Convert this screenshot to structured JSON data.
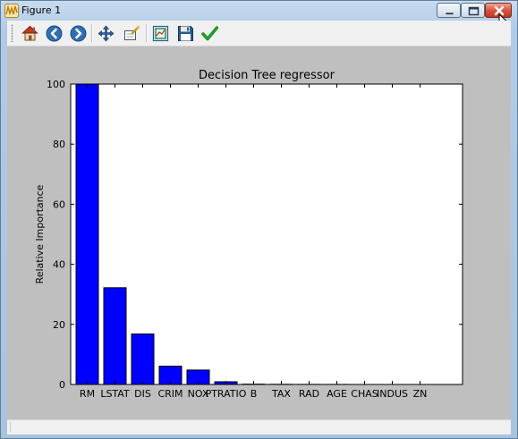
{
  "window": {
    "title": "Figure 1"
  },
  "toolbar": {
    "buttons": [
      {
        "name": "home-button",
        "icon": "home-icon"
      },
      {
        "name": "back-button",
        "icon": "back-arrow-icon"
      },
      {
        "name": "forward-button",
        "icon": "forward-arrow-icon"
      },
      {
        "name": "pan-button",
        "icon": "move-arrows-icon"
      },
      {
        "name": "zoom-button",
        "icon": "zoom-rectangle-icon"
      },
      {
        "name": "subplots-button",
        "icon": "subplots-config-icon"
      },
      {
        "name": "save-button",
        "icon": "floppy-disk-icon"
      },
      {
        "name": "edit-axes-button",
        "icon": "checkmark-icon"
      }
    ]
  },
  "colors": {
    "bar": "#0000ff",
    "figure_bg": "#c0bfc0",
    "axes_bg": "#ffffff"
  },
  "chart_data": {
    "type": "bar",
    "title": "Decision Tree regressor",
    "xlabel": "",
    "ylabel": "Relative Importance",
    "ylim": [
      0,
      100
    ],
    "yticks": [
      0,
      20,
      40,
      60,
      80,
      100
    ],
    "categories": [
      "RM",
      "LSTAT",
      "DIS",
      "CRIM",
      "NOX",
      "PTRATIO",
      "B",
      "TAX",
      "RAD",
      "AGE",
      "CHAS",
      "INDUS",
      "ZN"
    ],
    "values": [
      100,
      32.2,
      16.8,
      6.1,
      4.8,
      0.9,
      0.1,
      0.05,
      0.03,
      0.02,
      0,
      0,
      0
    ],
    "grid": false,
    "legend": "none"
  }
}
